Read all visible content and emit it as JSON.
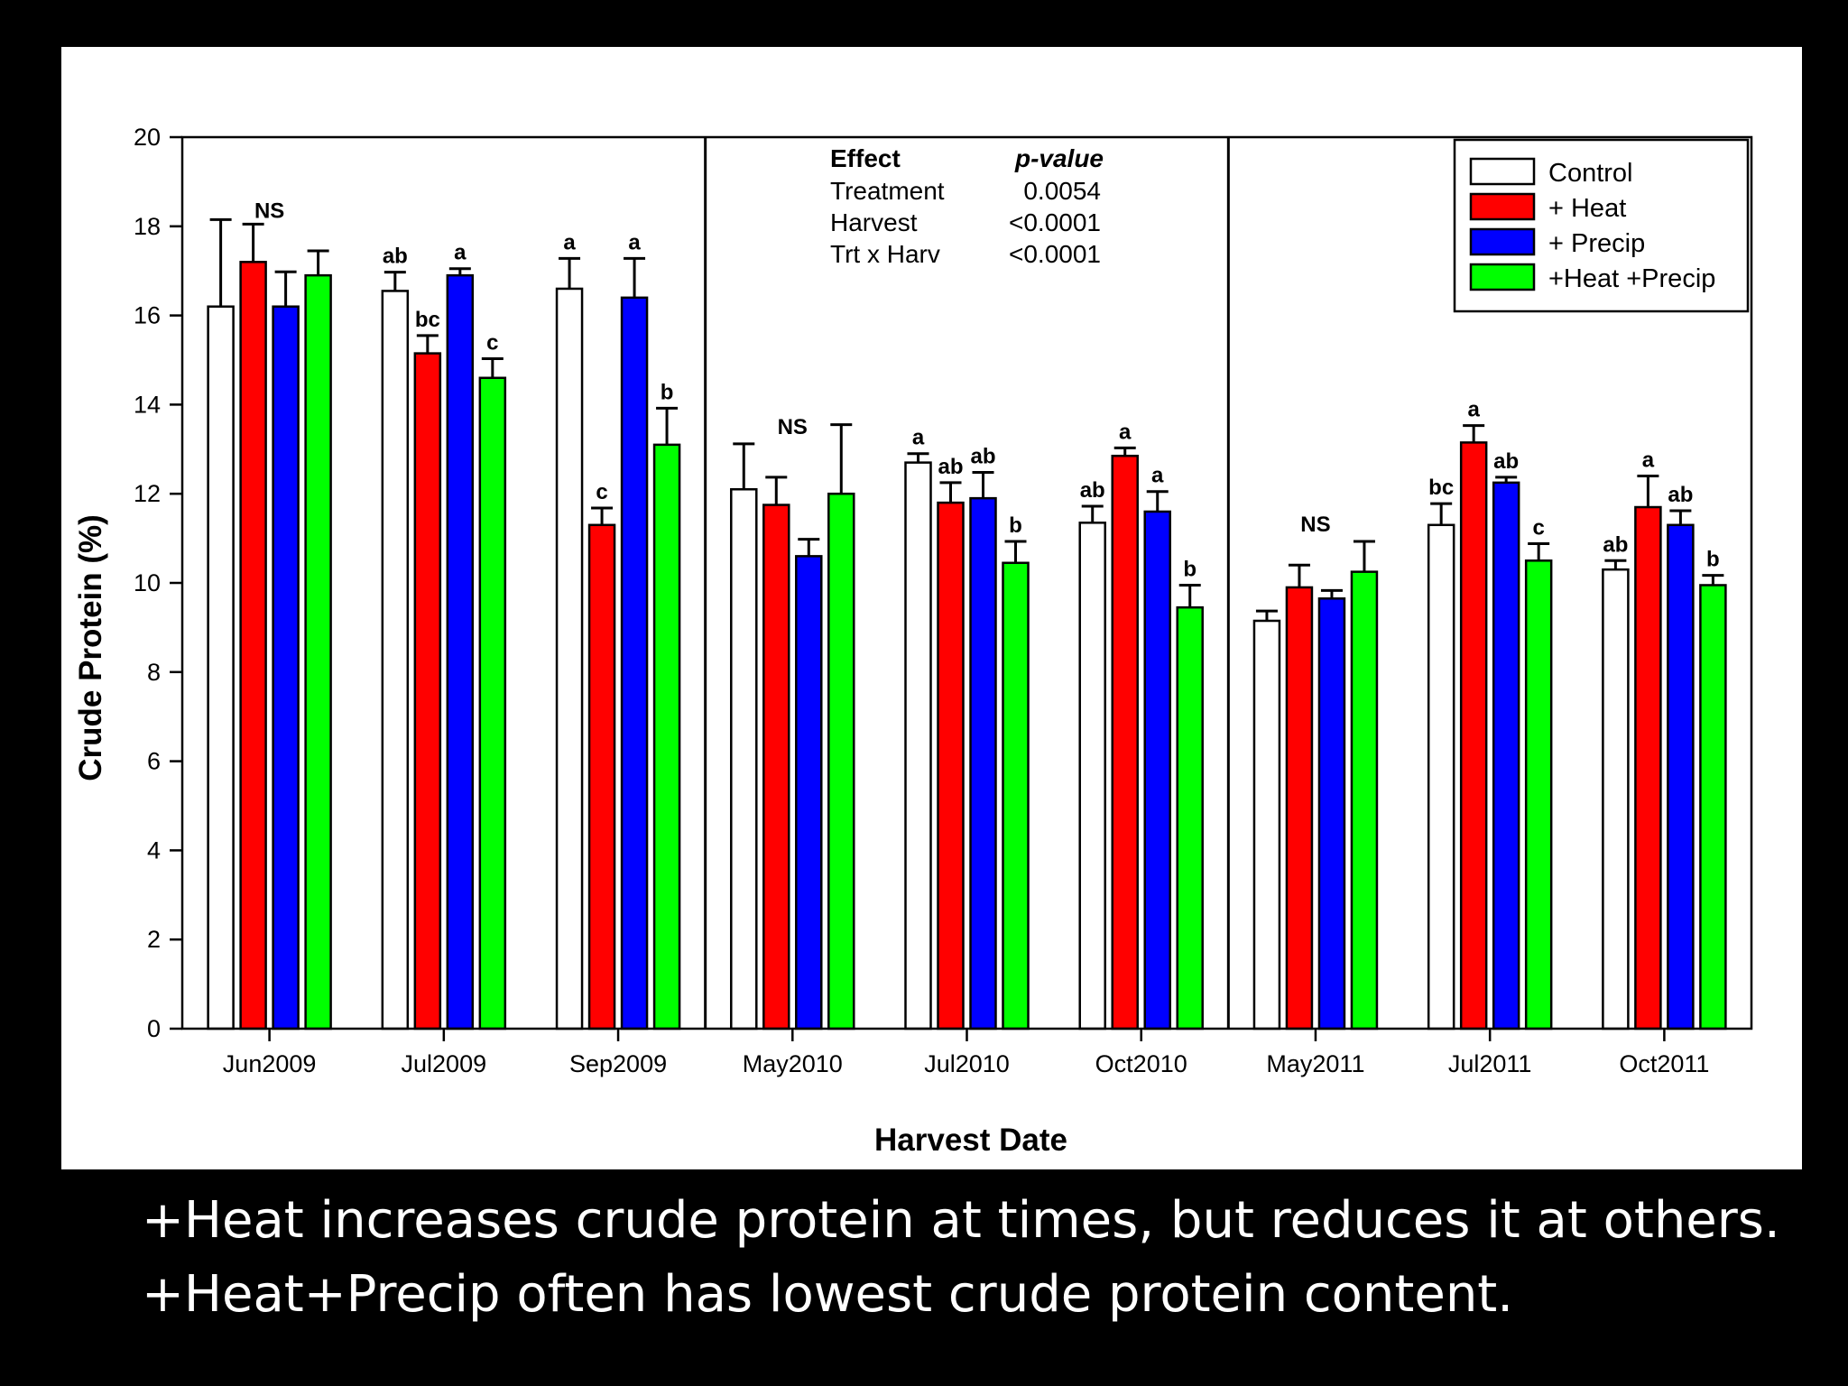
{
  "caption": {
    "line1": "+Heat increases crude protein at times, but reduces it at others.",
    "line2": "+Heat+Precip often has lowest crude protein content."
  },
  "stats_table": {
    "header_effect": "Effect",
    "header_pvalue": "p-value",
    "rows": [
      {
        "effect": "Treatment",
        "p": "0.0054"
      },
      {
        "effect": "Harvest",
        "p": "<0.0001"
      },
      {
        "effect": "Trt x Harv",
        "p": "<0.0001"
      }
    ]
  },
  "chart_data": {
    "type": "bar",
    "title": "",
    "xlabel": "Harvest Date",
    "ylabel": "Crude Protein (%)",
    "ylim": [
      0,
      20
    ],
    "yticks": [
      0,
      2,
      4,
      6,
      8,
      10,
      12,
      14,
      16,
      18,
      20
    ],
    "grid": false,
    "legend_position": "top-right",
    "categories": [
      "Jun2009",
      "Jul2009",
      "Sep2009",
      "May2010",
      "Jul2010",
      "Oct2010",
      "May2011",
      "Jul2011",
      "Oct2011"
    ],
    "series": [
      {
        "name": "Control",
        "color": "#ffffff",
        "values": [
          16.2,
          16.55,
          16.6,
          12.1,
          12.7,
          11.35,
          9.15,
          11.3,
          10.3
        ],
        "errors": [
          1.95,
          0.42,
          0.68,
          1.02,
          0.2,
          0.37,
          0.22,
          0.48,
          0.2
        ]
      },
      {
        "name": "+ Heat",
        "color": "#ff0000",
        "values": [
          17.2,
          15.15,
          11.3,
          11.75,
          11.8,
          12.85,
          9.9,
          13.15,
          11.7
        ],
        "errors": [
          0.85,
          0.4,
          0.38,
          0.62,
          0.45,
          0.18,
          0.5,
          0.38,
          0.7
        ]
      },
      {
        "name": "+ Precip",
        "color": "#0000ff",
        "values": [
          16.2,
          16.9,
          16.4,
          10.6,
          11.9,
          11.6,
          9.65,
          12.25,
          11.3
        ],
        "errors": [
          0.78,
          0.15,
          0.88,
          0.38,
          0.58,
          0.45,
          0.18,
          0.12,
          0.32
        ]
      },
      {
        "name": "+Heat +Precip",
        "color": "#00ff00",
        "values": [
          16.9,
          14.6,
          13.1,
          12.0,
          10.45,
          9.45,
          10.25,
          10.5,
          9.95
        ],
        "errors": [
          0.55,
          0.43,
          0.82,
          1.55,
          0.48,
          0.5,
          0.68,
          0.38,
          0.22
        ]
      }
    ],
    "letters": [
      [
        "",
        "",
        "",
        ""
      ],
      [
        "ab",
        "bc",
        "a",
        "c"
      ],
      [
        "a",
        "c",
        "a",
        "b"
      ],
      [
        "",
        "",
        "",
        ""
      ],
      [
        "a",
        "ab",
        "ab",
        "b"
      ],
      [
        "ab",
        "a",
        "a",
        "b"
      ],
      [
        "",
        "",
        "",
        ""
      ],
      [
        "bc",
        "a",
        "ab",
        "c"
      ],
      [
        "ab",
        "a",
        "ab",
        "b"
      ]
    ],
    "group_notes": [
      "NS",
      "",
      "",
      "NS",
      "",
      "",
      "NS",
      "",
      ""
    ],
    "separators_after": [
      "Sep2009",
      "Oct2010"
    ]
  }
}
